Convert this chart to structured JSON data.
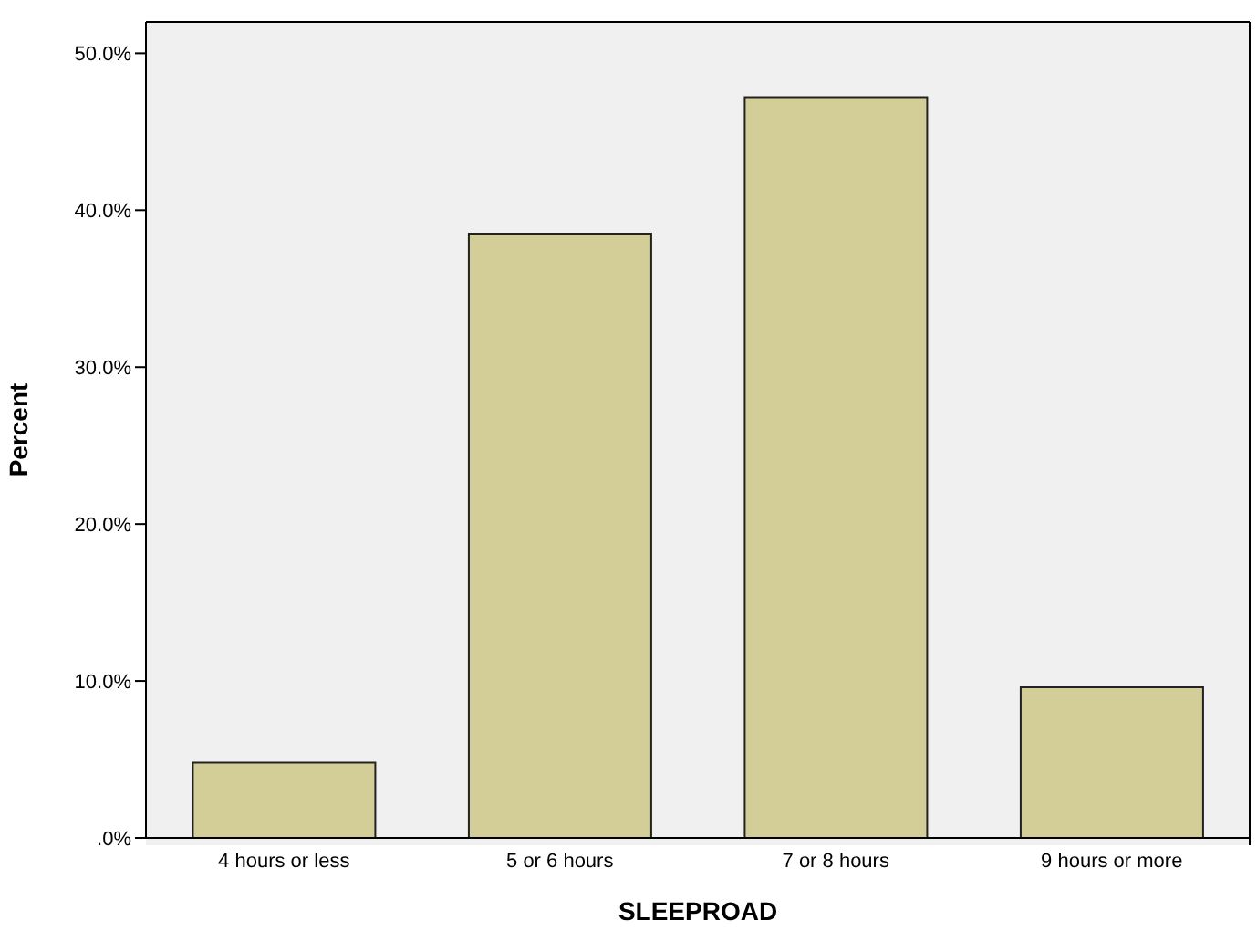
{
  "chart_data": {
    "type": "bar",
    "xlabel": "SLEEPROAD",
    "ylabel": "Percent",
    "categories": [
      "4 hours or less",
      "5 or 6 hours",
      "7 or 8 hours",
      "9 hours or more"
    ],
    "values": [
      4.8,
      38.5,
      47.2,
      9.6
    ],
    "color": "#d3ce98",
    "ylim": [
      0,
      52
    ],
    "yticks": [
      {
        "value": 0,
        "label": ".0%"
      },
      {
        "value": 10,
        "label": "10.0%"
      },
      {
        "value": 20,
        "label": "20.0%"
      },
      {
        "value": 30,
        "label": "30.0%"
      },
      {
        "value": 40,
        "label": "40.0%"
      },
      {
        "value": 50,
        "label": "50.0%"
      }
    ]
  }
}
